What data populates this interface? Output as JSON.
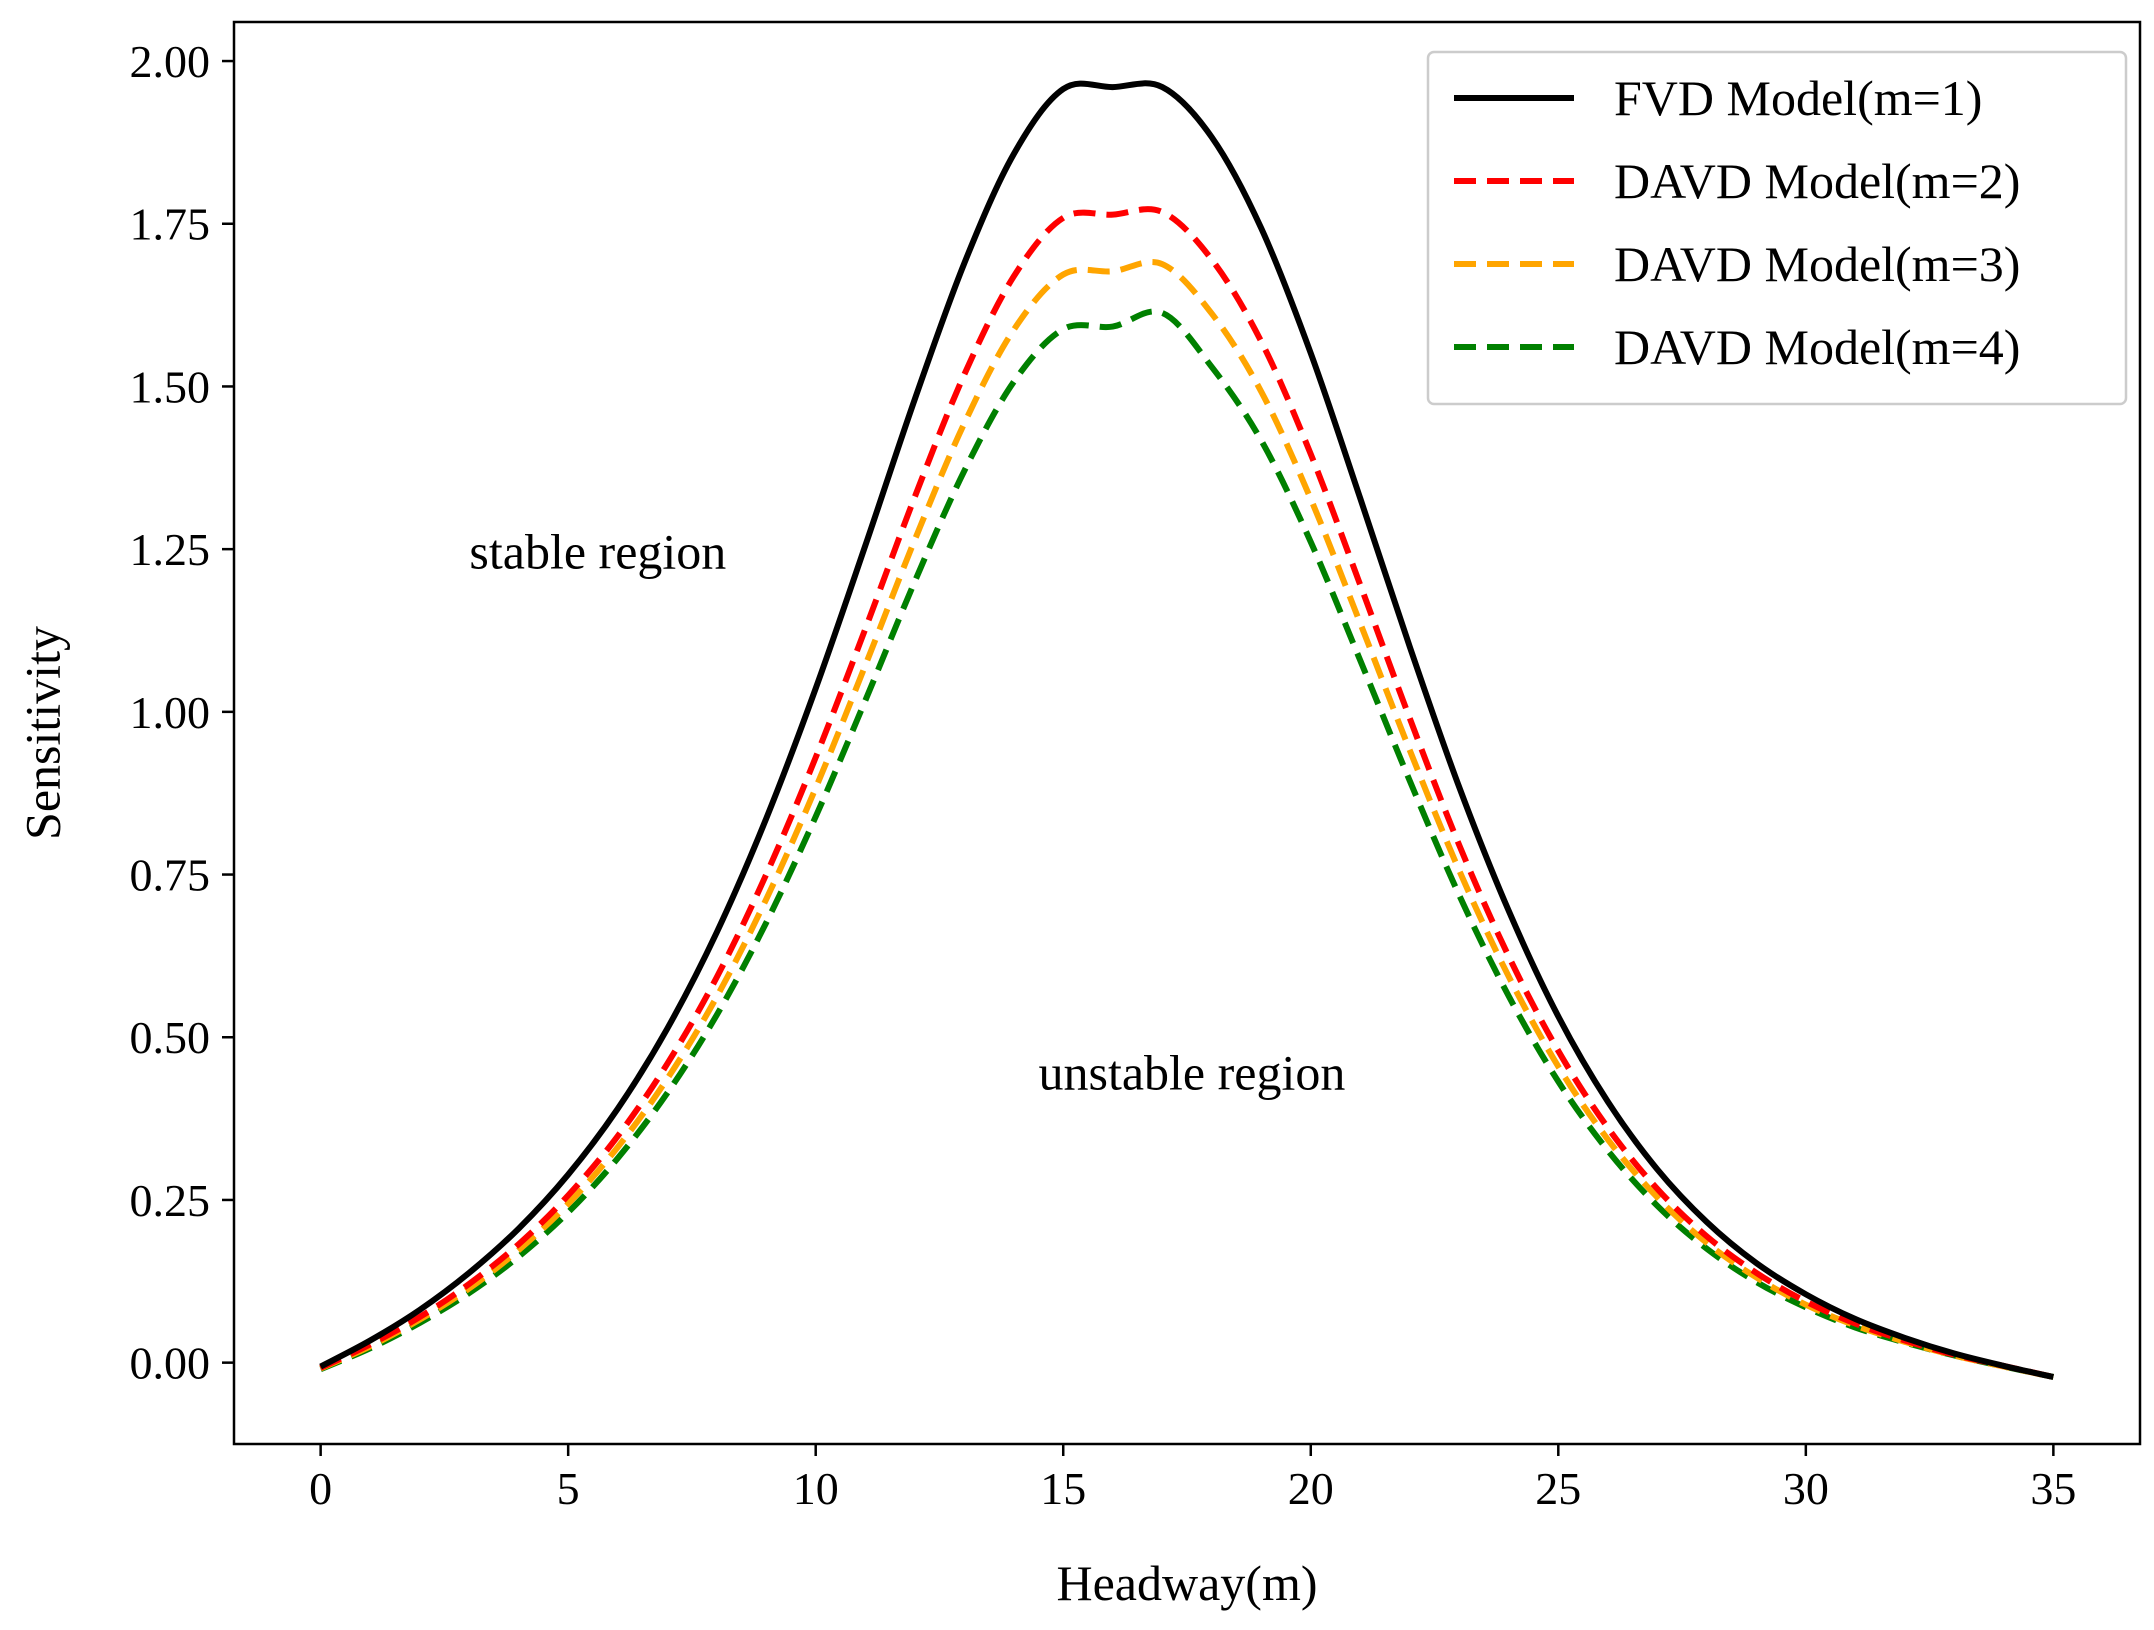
{
  "chart_data": {
    "type": "line",
    "title": "",
    "xlabel": "Headway(m)",
    "ylabel": "Sensitivity",
    "xlim": [
      -1.75,
      36.75
    ],
    "ylim": [
      -0.125,
      2.06
    ],
    "xticks": [
      0,
      5,
      10,
      15,
      20,
      25,
      30,
      35
    ],
    "xtick_labels": [
      "0",
      "5",
      "10",
      "15",
      "20",
      "25",
      "30",
      "35"
    ],
    "yticks": [
      0,
      0.25,
      0.5,
      0.75,
      1.0,
      1.25,
      1.5,
      1.75,
      2.0
    ],
    "ytick_labels": [
      "0.00",
      "0.25",
      "0.50",
      "0.75",
      "1.00",
      "1.25",
      "1.50",
      "1.75",
      "2.00"
    ],
    "grid": false,
    "legend_position": "top-right",
    "x": [
      0,
      1,
      2,
      3,
      4,
      5,
      6,
      7,
      8,
      9,
      10,
      11,
      12,
      13,
      14,
      15,
      16,
      17,
      18,
      19,
      20,
      21,
      22,
      23,
      24,
      25,
      26,
      27,
      28,
      29,
      30,
      31,
      32,
      33,
      34,
      35
    ],
    "series": [
      {
        "name": "FVD Model(m=1)",
        "color": "#000000",
        "dash": "solid",
        "values": [
          -0.006,
          0.034,
          0.081,
          0.138,
          0.206,
          0.289,
          0.39,
          0.513,
          0.661,
          0.836,
          1.036,
          1.255,
          1.48,
          1.689,
          1.857,
          1.957,
          1.96,
          1.96,
          1.883,
          1.743,
          1.551,
          1.328,
          1.1,
          0.884,
          0.694,
          0.532,
          0.401,
          0.297,
          0.216,
          0.153,
          0.105,
          0.067,
          0.038,
          0.014,
          -0.005,
          -0.022
        ]
      },
      {
        "name": "DAVD Model(m=2)",
        "color": "#ff0000",
        "dash": "dashed",
        "values": [
          -0.008,
          0.028,
          0.07,
          0.121,
          0.182,
          0.257,
          0.348,
          0.459,
          0.592,
          0.75,
          0.93,
          1.127,
          1.33,
          1.518,
          1.669,
          1.759,
          1.764,
          1.768,
          1.695,
          1.569,
          1.396,
          1.195,
          0.99,
          0.795,
          0.624,
          0.479,
          0.361,
          0.267,
          0.194,
          0.138,
          0.094,
          0.06,
          0.034,
          0.012,
          -0.005,
          -0.022
        ]
      },
      {
        "name": "DAVD Model(m=3)",
        "color": "#ffa500",
        "dash": "dashed",
        "values": [
          -0.009,
          0.025,
          0.066,
          0.114,
          0.173,
          0.244,
          0.331,
          0.436,
          0.562,
          0.712,
          0.883,
          1.071,
          1.264,
          1.443,
          1.587,
          1.672,
          1.677,
          1.688,
          1.612,
          1.492,
          1.327,
          1.136,
          0.941,
          0.756,
          0.593,
          0.455,
          0.343,
          0.254,
          0.184,
          0.131,
          0.089,
          0.057,
          0.032,
          0.011,
          -0.006,
          -0.022
        ]
      },
      {
        "name": "DAVD Model(m=4)",
        "color": "#008000",
        "dash": "dashed",
        "values": [
          -0.01,
          0.022,
          0.061,
          0.107,
          0.163,
          0.231,
          0.314,
          0.414,
          0.534,
          0.676,
          0.839,
          1.017,
          1.2,
          1.37,
          1.507,
          1.588,
          1.592,
          1.613,
          1.53,
          1.417,
          1.261,
          1.079,
          0.894,
          0.718,
          0.563,
          0.432,
          0.326,
          0.241,
          0.175,
          0.124,
          0.085,
          0.054,
          0.031,
          0.011,
          -0.006,
          -0.022
        ]
      }
    ],
    "annotations": [
      {
        "text": "stable region",
        "x": 5.6,
        "y": 1.22
      },
      {
        "text": "unstable region",
        "x": 17.6,
        "y": 0.42
      }
    ]
  }
}
